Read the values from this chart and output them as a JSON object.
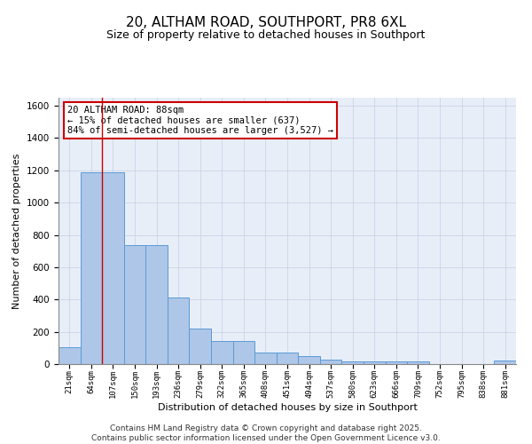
{
  "title": "20, ALTHAM ROAD, SOUTHPORT, PR8 6XL",
  "subtitle": "Size of property relative to detached houses in Southport",
  "xlabel": "Distribution of detached houses by size in Southport",
  "ylabel": "Number of detached properties",
  "footer_line1": "Contains HM Land Registry data © Crown copyright and database right 2025.",
  "footer_line2": "Contains public sector information licensed under the Open Government Licence v3.0.",
  "bar_categories": [
    "21sqm",
    "64sqm",
    "107sqm",
    "150sqm",
    "193sqm",
    "236sqm",
    "279sqm",
    "322sqm",
    "365sqm",
    "408sqm",
    "451sqm",
    "494sqm",
    "537sqm",
    "580sqm",
    "623sqm",
    "666sqm",
    "709sqm",
    "752sqm",
    "795sqm",
    "838sqm",
    "881sqm"
  ],
  "bar_values": [
    107,
    1190,
    1190,
    735,
    735,
    415,
    220,
    145,
    145,
    72,
    72,
    50,
    28,
    15,
    15,
    15,
    15,
    0,
    0,
    0,
    20
  ],
  "bar_color": "#aec6e8",
  "bar_edge_color": "#5b9bd5",
  "annotation_text": "20 ALTHAM ROAD: 88sqm\n← 15% of detached houses are smaller (637)\n84% of semi-detached houses are larger (3,527) →",
  "red_line_x": 1.5,
  "vline_color": "#cc0000",
  "annotation_box_edge": "#cc0000",
  "annotation_fontsize": 7.5,
  "title_fontsize": 11,
  "subtitle_fontsize": 9,
  "xlabel_fontsize": 8,
  "ylabel_fontsize": 8,
  "footer_fontsize": 6.5,
  "ylim": [
    0,
    1650
  ],
  "yticks": [
    0,
    200,
    400,
    600,
    800,
    1000,
    1200,
    1400,
    1600
  ],
  "grid_color": "#c8d4e8",
  "background_color": "#e8eef8"
}
